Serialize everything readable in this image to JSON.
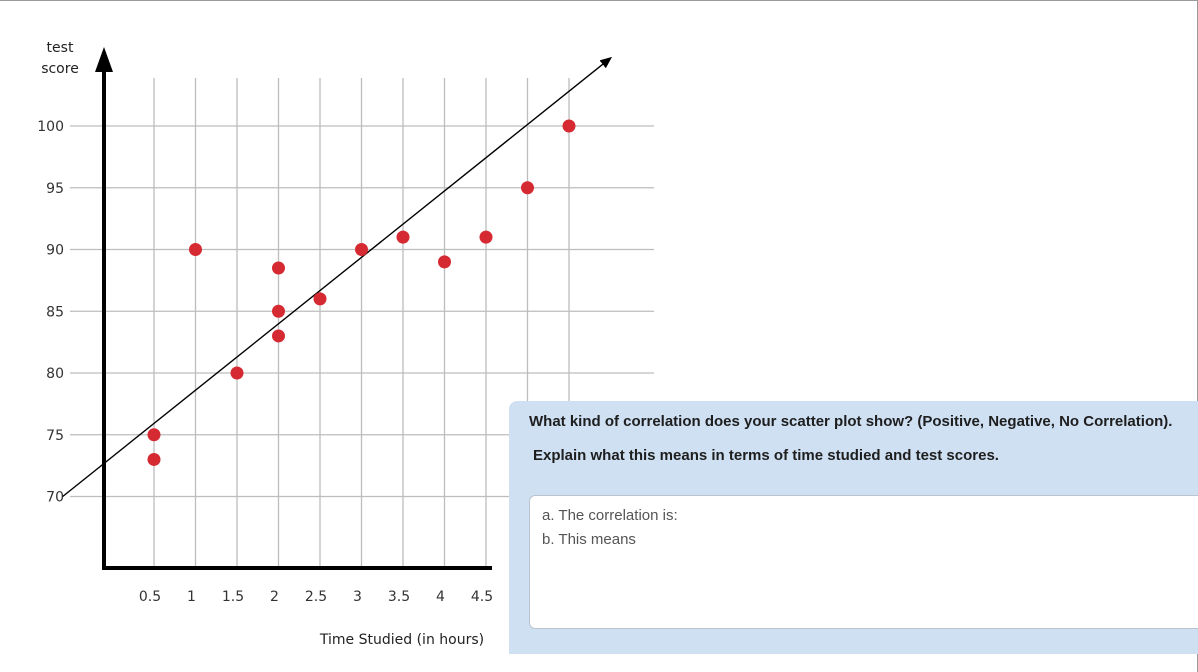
{
  "chart_data": {
    "type": "scatter",
    "title": "",
    "xlabel": "Time Studied (in hours)",
    "ylabel": "test score",
    "x_ticks": [
      {
        "value": 0.5,
        "label": "0.5"
      },
      {
        "value": 1,
        "label": "1"
      },
      {
        "value": 1.5,
        "label": "1.5"
      },
      {
        "value": 2,
        "label": "2"
      },
      {
        "value": 2.5,
        "label": "2.5"
      },
      {
        "value": 3,
        "label": "3"
      },
      {
        "value": 3.5,
        "label": "3.5"
      },
      {
        "value": 4,
        "label": "4"
      },
      {
        "value": 4.5,
        "label": "4.5"
      }
    ],
    "y_ticks": [
      {
        "value": 70,
        "label": "70"
      },
      {
        "value": 75,
        "label": "75"
      },
      {
        "value": 80,
        "label": "80"
      },
      {
        "value": 85,
        "label": "85"
      },
      {
        "value": 90,
        "label": "90"
      },
      {
        "value": 95,
        "label": "95"
      },
      {
        "value": 100,
        "label": "100"
      }
    ],
    "points": [
      {
        "x": 0.5,
        "y": 75
      },
      {
        "x": 0.5,
        "y": 73
      },
      {
        "x": 1,
        "y": 90
      },
      {
        "x": 1.5,
        "y": 80
      },
      {
        "x": 2,
        "y": 88.5
      },
      {
        "x": 2,
        "y": 85
      },
      {
        "x": 2,
        "y": 83
      },
      {
        "x": 2.5,
        "y": 86
      },
      {
        "x": 3,
        "y": 90
      },
      {
        "x": 3.5,
        "y": 91
      },
      {
        "x": 4,
        "y": 89
      },
      {
        "x": 4.5,
        "y": 91
      },
      {
        "x": 5,
        "y": 95
      },
      {
        "x": 5.5,
        "y": 100
      }
    ],
    "trend_line": {
      "x1": -0.6,
      "y1": 70,
      "x2": 6.0,
      "y2": 105.5
    },
    "xlim": [
      -0.15,
      6.3
    ],
    "grid": true,
    "point_color": "#d62a33",
    "line_color": "#000000"
  },
  "panel": {
    "question": "What kind of correlation does your scatter plot show? (Positive, Negative, No Correlation).",
    "instruction": "Explain what this means in terms of time studied and test scores.",
    "answer_lines": [
      "a. The correlation is:",
      "b. This means"
    ],
    "background_color": "#cfe0f3"
  }
}
